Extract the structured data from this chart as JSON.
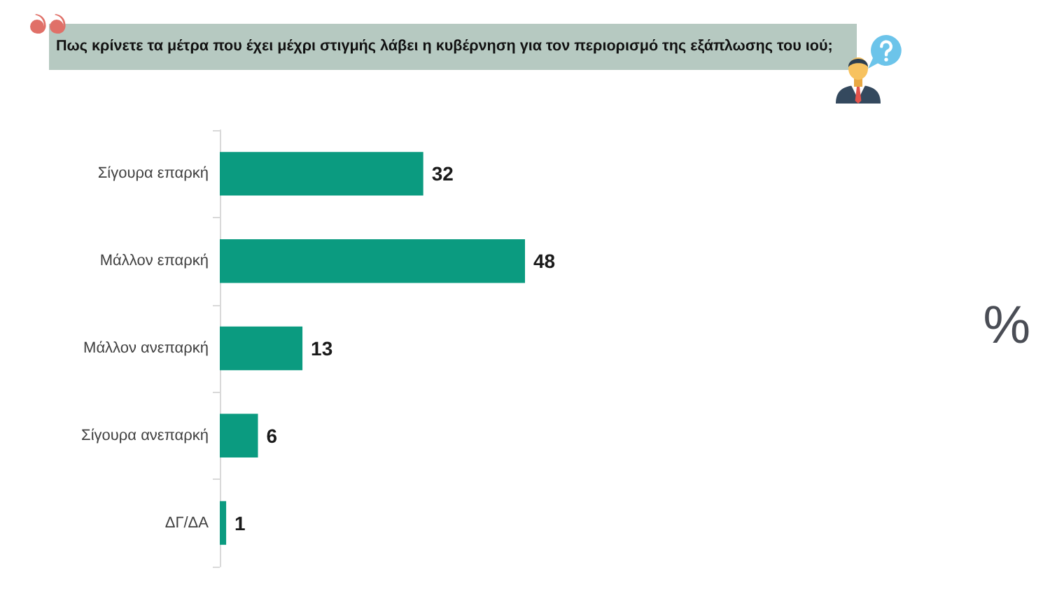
{
  "chart_data": {
    "type": "bar",
    "orientation": "horizontal",
    "title": "Πως κρίνετε τα μέτρα που έχει μέχρι στιγμής λάβει η κυβέρνηση για τον περιορισμό της εξάπλωσης του ιού;",
    "categories": [
      "Σίγουρα επαρκή",
      "Μάλλον επαρκή",
      "Μάλλον ανεπαρκή",
      "Σίγουρα ανεπαρκή",
      "ΔΓ/ΔΑ"
    ],
    "values": [
      32,
      48,
      13,
      6,
      1
    ],
    "color": "#0b9b80",
    "data_labels": true,
    "tick_labels": "y",
    "annotations": [
      "%"
    ]
  }
}
